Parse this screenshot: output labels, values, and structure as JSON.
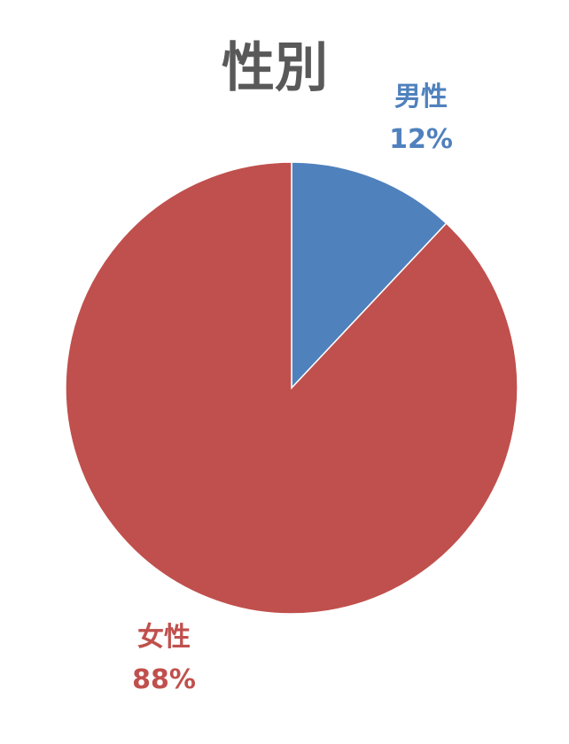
{
  "chart_data": {
    "type": "pie",
    "title": "性別",
    "categories": [
      "男性",
      "女性"
    ],
    "values": [
      12,
      88
    ],
    "value_labels": [
      "12%",
      "88%"
    ],
    "colors": [
      "#4F81BD",
      "#C0504D"
    ],
    "start_angle": "12 o'clock",
    "direction": "clockwise",
    "legend": "none"
  }
}
